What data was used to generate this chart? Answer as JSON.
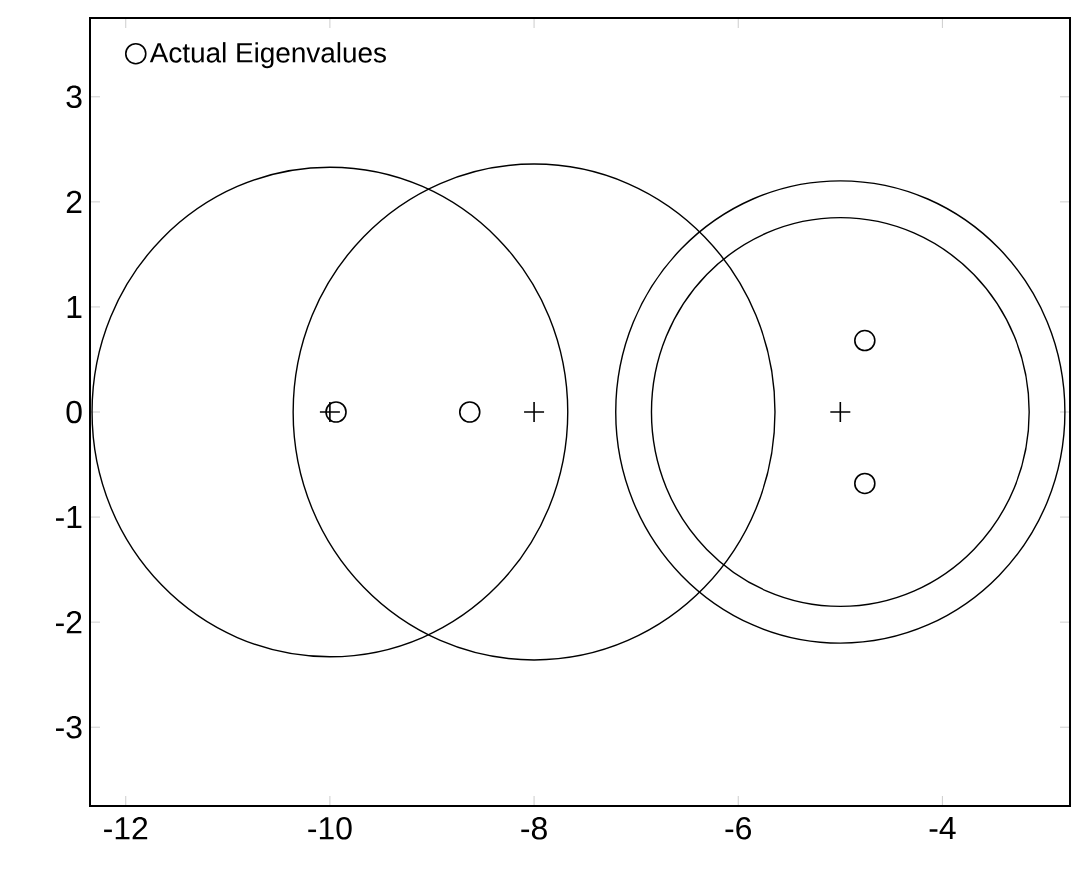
{
  "chart_data": {
    "type": "scatter",
    "xlim": [
      -12.35,
      -2.75
    ],
    "ylim": [
      -3.75,
      3.75
    ],
    "xticks": [
      -12,
      -10,
      -8,
      -6,
      -4
    ],
    "yticks": [
      -3,
      -2,
      -1,
      0,
      1,
      2,
      3
    ],
    "grid": false,
    "legend": "top left",
    "series": [
      {
        "color": "#000000",
        "marker": "cross",
        "x": [
          -10,
          -8,
          -5
        ],
        "values": [
          0,
          0,
          0
        ]
      },
      {
        "name": "Actual Eigenvalues",
        "color": "#000000",
        "marker": "circle",
        "x": [
          -9.94,
          -8.63,
          -4.76,
          -4.76
        ],
        "values": [
          0,
          0,
          0.68,
          -0.68
        ]
      }
    ]
  }
}
